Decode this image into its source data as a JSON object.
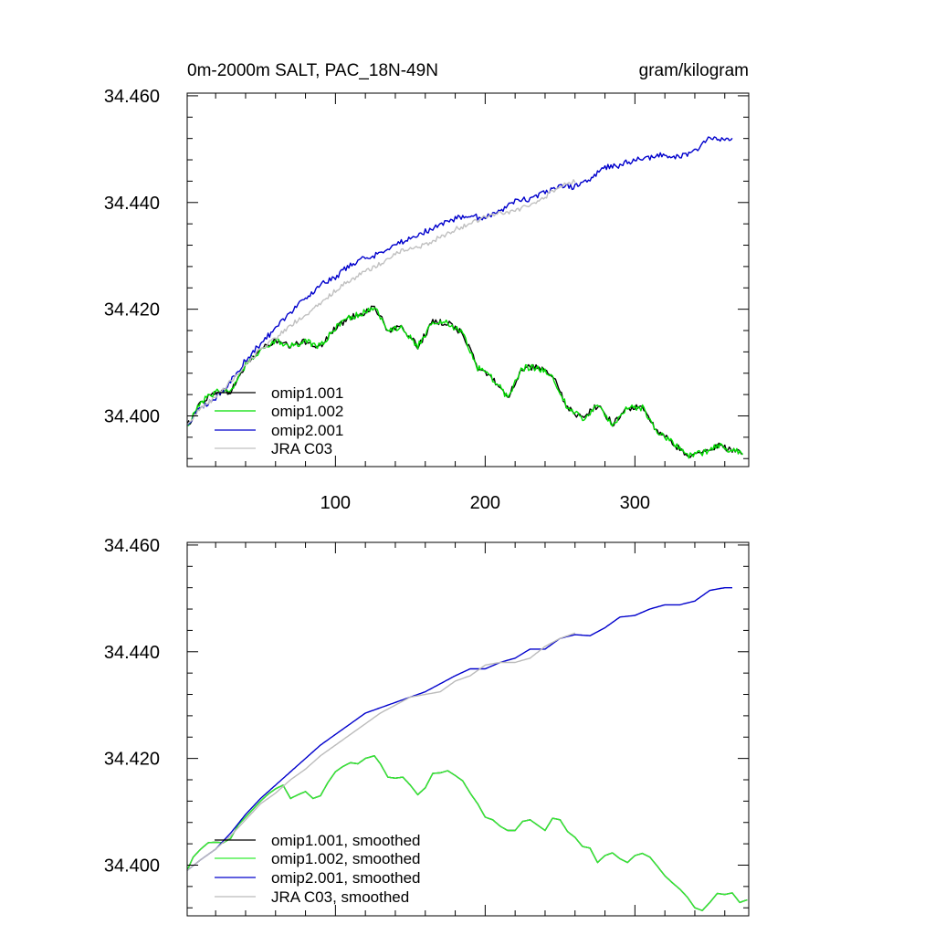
{
  "chart_data": [
    {
      "type": "line",
      "title_left": "0m-2000m SALT, PAC_18N-49N",
      "title_right": "gram/kilogram",
      "xlim": [
        1,
        376
      ],
      "ylim": [
        34.3905,
        34.4605
      ],
      "xticks": [
        100,
        200,
        300
      ],
      "yticks": [
        34.4,
        34.42,
        34.44,
        34.46
      ],
      "ytick_labels": [
        "34.400",
        "34.420",
        "34.440",
        "34.460"
      ],
      "xtick_labels": [
        "100",
        "200",
        "300"
      ],
      "legend_position": "bottom-left",
      "series": [
        {
          "name": "omip1.001",
          "color": "#000000",
          "noise": 0.0012,
          "x": [
            1,
            10,
            20,
            30,
            40,
            50,
            60,
            70,
            80,
            90,
            100,
            110,
            120,
            126,
            135,
            145,
            155,
            165,
            175,
            185,
            195,
            205,
            215,
            225,
            235,
            245,
            255,
            265,
            275,
            285,
            295,
            305,
            315,
            325,
            335,
            345,
            355,
            365,
            372
          ],
          "y": [
            34.398,
            34.4025,
            34.4045,
            34.4045,
            34.4095,
            34.4125,
            34.414,
            34.413,
            34.414,
            34.413,
            34.4165,
            34.4185,
            34.4195,
            34.4205,
            34.416,
            34.4165,
            34.413,
            34.4175,
            34.4175,
            34.4155,
            34.409,
            34.407,
            34.4035,
            34.409,
            34.409,
            34.4075,
            34.4015,
            34.3995,
            34.402,
            34.3985,
            34.4015,
            34.4015,
            34.397,
            34.395,
            34.3925,
            34.393,
            34.3945,
            34.3935,
            34.393
          ]
        },
        {
          "name": "omip1.002",
          "color": "#00dd00",
          "noise": 0.0012,
          "x": [
            1,
            10,
            20,
            30,
            40,
            50,
            60,
            70,
            80,
            90,
            100,
            110,
            120,
            126,
            135,
            145,
            155,
            165,
            175,
            185,
            195,
            205,
            215,
            225,
            235,
            245,
            255,
            265,
            275,
            285,
            295,
            305,
            315,
            325,
            335,
            345,
            355,
            365,
            372
          ],
          "y": [
            34.398,
            34.4025,
            34.4045,
            34.4045,
            34.4095,
            34.4125,
            34.414,
            34.413,
            34.414,
            34.413,
            34.4165,
            34.4185,
            34.4195,
            34.4205,
            34.416,
            34.4165,
            34.413,
            34.4175,
            34.4175,
            34.4155,
            34.409,
            34.407,
            34.4035,
            34.409,
            34.409,
            34.4075,
            34.4015,
            34.3995,
            34.402,
            34.3985,
            34.4015,
            34.4015,
            34.397,
            34.395,
            34.3925,
            34.393,
            34.3945,
            34.3935,
            34.393
          ]
        },
        {
          "name": "omip2.001",
          "color": "#0000cc",
          "noise": 0.0011,
          "x": [
            1,
            10,
            20,
            30,
            40,
            50,
            60,
            70,
            80,
            90,
            100,
            110,
            120,
            130,
            140,
            150,
            160,
            170,
            180,
            190,
            200,
            210,
            220,
            230,
            240,
            250,
            260,
            270,
            280,
            290,
            300,
            310,
            320,
            330,
            340,
            350,
            360,
            365
          ],
          "y": [
            34.398,
            34.4015,
            34.4035,
            34.4065,
            34.4105,
            34.4135,
            34.4165,
            34.4195,
            34.422,
            34.4245,
            34.426,
            34.4285,
            34.4295,
            34.4305,
            34.432,
            34.4335,
            34.4345,
            34.436,
            34.437,
            34.4375,
            34.437,
            34.4385,
            34.4405,
            34.4405,
            34.442,
            34.443,
            34.443,
            34.4445,
            34.4465,
            34.447,
            34.448,
            34.4485,
            34.449,
            34.4485,
            34.4495,
            34.4525,
            34.4515,
            34.452
          ]
        },
        {
          "name": "JRA C03",
          "color": "#c0c0c0",
          "noise": 0.0009,
          "x": [
            1,
            10,
            20,
            30,
            40,
            50,
            60,
            70,
            80,
            90,
            100,
            110,
            120,
            130,
            140,
            150,
            160,
            170,
            180,
            190,
            200,
            210,
            220,
            230,
            240,
            250,
            260
          ],
          "y": [
            34.398,
            34.4015,
            34.4035,
            34.4065,
            34.4095,
            34.4125,
            34.4145,
            34.417,
            34.419,
            34.421,
            34.4235,
            34.4255,
            34.427,
            34.4285,
            34.4305,
            34.4315,
            34.432,
            34.4335,
            34.435,
            34.436,
            34.4375,
            34.438,
            34.4385,
            34.4395,
            34.441,
            34.443,
            34.444
          ]
        }
      ]
    },
    {
      "type": "line",
      "xlim": [
        1,
        376
      ],
      "ylim": [
        34.3905,
        34.4605
      ],
      "xticks": [
        100,
        200,
        300
      ],
      "yticks": [
        34.4,
        34.42,
        34.44,
        34.46
      ],
      "ytick_labels": [
        "34.400",
        "34.420",
        "34.440",
        "34.460"
      ],
      "legend_position": "bottom-left",
      "series": [
        {
          "name": "omip1.001, smoothed",
          "color": "#000000",
          "x": [
            1,
            5,
            10,
            15,
            20,
            25,
            30,
            35,
            40,
            45,
            50,
            55,
            60,
            65,
            70,
            75,
            80,
            85,
            90,
            95,
            100,
            105,
            110,
            115,
            120,
            126,
            130,
            135,
            140,
            145,
            150,
            155,
            160,
            165,
            170,
            175,
            180,
            185,
            190,
            195,
            200,
            205,
            210,
            215,
            220,
            225,
            230,
            235,
            240,
            245,
            250,
            255,
            260,
            265,
            270,
            275,
            280,
            285,
            290,
            295,
            300,
            305,
            310,
            315,
            320,
            325,
            330,
            335,
            340,
            345,
            350,
            355,
            360,
            365,
            370,
            375
          ],
          "y": [
            34.399,
            34.4015,
            34.403,
            34.4042,
            34.4043,
            34.4042,
            34.405,
            34.4075,
            34.409,
            34.4105,
            34.412,
            34.4133,
            34.4143,
            34.415,
            34.4125,
            34.4132,
            34.4138,
            34.4125,
            34.413,
            34.4155,
            34.4175,
            34.4185,
            34.4192,
            34.419,
            34.42,
            34.4205,
            34.419,
            34.4165,
            34.4163,
            34.4165,
            34.415,
            34.4132,
            34.4145,
            34.4172,
            34.4173,
            34.4177,
            34.4168,
            34.4158,
            34.4135,
            34.4115,
            34.409,
            34.4085,
            34.4073,
            34.4065,
            34.4065,
            34.4082,
            34.4085,
            34.4075,
            34.4065,
            34.4088,
            34.4085,
            34.4063,
            34.4052,
            34.4035,
            34.4032,
            34.4005,
            34.4018,
            34.4023,
            34.4012,
            34.4005,
            34.4018,
            34.4022,
            34.4015,
            34.3998,
            34.398,
            34.3967,
            34.3955,
            34.394,
            34.392,
            34.3915,
            34.393,
            34.3947,
            34.3945,
            34.3948,
            34.393,
            34.3935
          ]
        },
        {
          "name": "omip1.002, smoothed",
          "color": "#33ee33",
          "x": [
            1,
            5,
            10,
            15,
            20,
            25,
            30,
            35,
            40,
            45,
            50,
            55,
            60,
            65,
            70,
            75,
            80,
            85,
            90,
            95,
            100,
            105,
            110,
            115,
            120,
            126,
            130,
            135,
            140,
            145,
            150,
            155,
            160,
            165,
            170,
            175,
            180,
            185,
            190,
            195,
            200,
            205,
            210,
            215,
            220,
            225,
            230,
            235,
            240,
            245,
            250,
            255,
            260,
            265,
            270,
            275,
            280,
            285,
            290,
            295,
            300,
            305,
            310,
            315,
            320,
            325,
            330,
            335,
            340,
            345,
            350,
            355,
            360,
            365,
            370,
            375
          ],
          "y": [
            34.399,
            34.4015,
            34.403,
            34.4042,
            34.4043,
            34.4042,
            34.405,
            34.4075,
            34.409,
            34.4105,
            34.412,
            34.4133,
            34.4143,
            34.415,
            34.4125,
            34.4132,
            34.4138,
            34.4125,
            34.413,
            34.4155,
            34.4175,
            34.4185,
            34.4192,
            34.419,
            34.42,
            34.4205,
            34.419,
            34.4165,
            34.4163,
            34.4165,
            34.415,
            34.4132,
            34.4145,
            34.4172,
            34.4173,
            34.4177,
            34.4168,
            34.4158,
            34.4135,
            34.4115,
            34.409,
            34.4085,
            34.4073,
            34.4065,
            34.4065,
            34.4082,
            34.4085,
            34.4075,
            34.4065,
            34.4088,
            34.4085,
            34.4063,
            34.4052,
            34.4035,
            34.4032,
            34.4005,
            34.4018,
            34.4023,
            34.4012,
            34.4005,
            34.4018,
            34.4022,
            34.4015,
            34.3998,
            34.398,
            34.3967,
            34.3955,
            34.394,
            34.392,
            34.3915,
            34.393,
            34.3947,
            34.3945,
            34.3948,
            34.393,
            34.3935
          ]
        },
        {
          "name": "omip2.001, smoothed",
          "color": "#0000cc",
          "x": [
            1,
            10,
            20,
            30,
            40,
            50,
            60,
            70,
            80,
            90,
            100,
            110,
            120,
            130,
            140,
            150,
            160,
            170,
            180,
            190,
            200,
            210,
            220,
            230,
            240,
            250,
            260,
            270,
            280,
            290,
            300,
            310,
            320,
            330,
            340,
            350,
            360,
            365
          ],
          "y": [
            34.399,
            34.401,
            34.403,
            34.406,
            34.4095,
            34.4125,
            34.415,
            34.4175,
            34.42,
            34.4225,
            34.4245,
            34.4265,
            34.4285,
            34.4295,
            34.4305,
            34.4315,
            34.4325,
            34.434,
            34.4355,
            34.4368,
            34.4368,
            34.438,
            34.4388,
            34.4405,
            34.4405,
            34.4425,
            34.4432,
            34.443,
            34.4445,
            34.4465,
            34.4468,
            34.448,
            34.4488,
            34.4488,
            34.4495,
            34.4515,
            34.452,
            34.452
          ]
        },
        {
          "name": "JRA C03, smoothed",
          "color": "#bbbbbb",
          "x": [
            1,
            10,
            20,
            30,
            40,
            50,
            60,
            70,
            80,
            90,
            100,
            110,
            120,
            130,
            140,
            150,
            160,
            170,
            180,
            190,
            200,
            210,
            220,
            230,
            240,
            250,
            260
          ],
          "y": [
            34.399,
            34.401,
            34.403,
            34.4055,
            34.4085,
            34.4115,
            34.4135,
            34.416,
            34.418,
            34.4205,
            34.4225,
            34.4245,
            34.4265,
            34.4285,
            34.43,
            34.4315,
            34.432,
            34.4325,
            34.4345,
            34.4355,
            34.4375,
            34.438,
            34.438,
            34.4388,
            34.441,
            34.4425,
            34.4435
          ]
        }
      ]
    }
  ]
}
